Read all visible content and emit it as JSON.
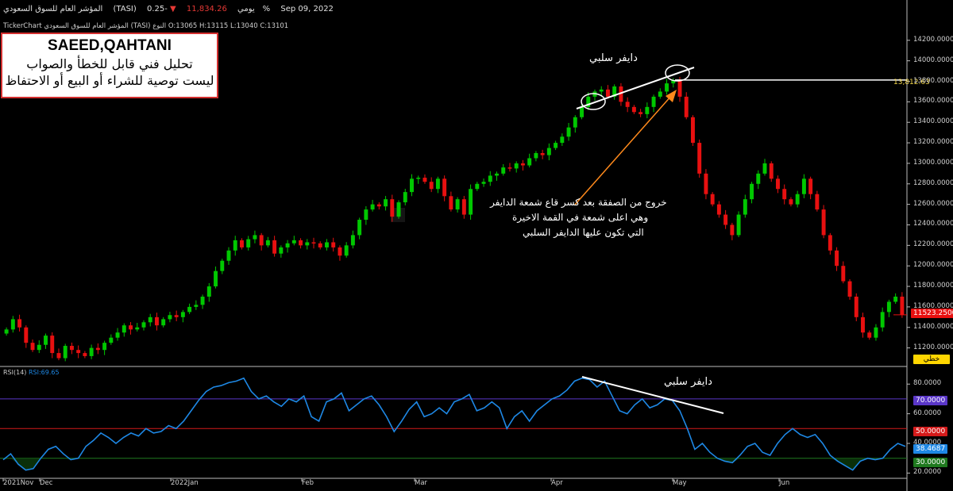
{
  "header": {
    "index_name": "المؤشر العام للسوق السعودي",
    "symbol": "(TASI)",
    "period": "يومي",
    "price": "11,834.26",
    "change_arrow": "▼",
    "change": "-0.25%",
    "date": "Sep 09, 2022"
  },
  "subheader": "TickerChart المؤشر العام للسوق السعودي (TASI) النوع O:13065 H:13115 L:13040 C:13101",
  "disclaimer": {
    "author": "SAEED,QAHTANI",
    "line1": "تحليل فني قابل للخطأ والصواب",
    "line2": "ليست توصية للشراء أو البيع أو الاحتفاظ"
  },
  "annotations": {
    "divergence_top": "دايفر سلبي",
    "divergence_rsi": "دايفر سلبي",
    "exit_note_1": "خروج من الصفقة بعد كسر قاع شمعة الدايفر",
    "exit_note_2": "وهي اعلى شمعة في القمة الاخيرة",
    "exit_note_3": "التي تكون عليها الدايفر السلبي"
  },
  "price_labels": {
    "level_line": "13,812.63",
    "last_price": "11523.2500",
    "scale_button": "خطي"
  },
  "rsi_panel": {
    "label": "RSI(14)",
    "value_label": "RSI:69.65",
    "level_70": "70.0000",
    "level_50": "50.0000",
    "level_30": "30.0000",
    "current": "38.4687"
  },
  "colors": {
    "up": "#00c800",
    "down": "#e81010",
    "rsi": "#1e88e5",
    "level70": "#5a36c8",
    "level50": "#d41a1a",
    "level30": "#1f7a1f"
  },
  "chart_data": [
    {
      "type": "candlestick",
      "title": "",
      "y_axis_ticks": [
        "14200.0000",
        "14000.0000",
        "13800.0000",
        "13600.0000",
        "13400.0000",
        "13200.0000",
        "13000.0000",
        "12800.0000",
        "12600.0000",
        "12400.0000",
        "12200.0000",
        "12000.0000",
        "11800.0000",
        "11600.0000",
        "11400.0000",
        "11200.0000"
      ],
      "ylim": [
        11050,
        14330
      ],
      "x_axis_labels": [
        "2021Nov",
        "Dec",
        "2022Jan",
        "Feb",
        "Mar",
        "Apr",
        "May",
        "Jun"
      ],
      "close_series": [
        11380,
        11480,
        11400,
        11250,
        11180,
        11230,
        11320,
        11150,
        11100,
        11220,
        11180,
        11150,
        11120,
        11200,
        11180,
        11250,
        11300,
        11350,
        11420,
        11380,
        11400,
        11450,
        11500,
        11420,
        11480,
        11520,
        11500,
        11550,
        11600,
        11620,
        11700,
        11800,
        11950,
        12050,
        12150,
        12250,
        12180,
        12260,
        12300,
        12200,
        12250,
        12120,
        12180,
        12220,
        12250,
        12200,
        12230,
        12220,
        12180,
        12230,
        12180,
        12100,
        12200,
        12300,
        12450,
        12550,
        12600,
        12580,
        12650,
        12480,
        12620,
        12720,
        12850,
        12860,
        12820,
        12750,
        12850,
        12680,
        12550,
        12650,
        12500,
        12750,
        12800,
        12820,
        12880,
        12900,
        12960,
        12950,
        13000,
        12980,
        13050,
        13100,
        13080,
        13150,
        13200,
        13260,
        13350,
        13450,
        13550,
        13650,
        13700,
        13720,
        13650,
        13750,
        13600,
        13550,
        13500,
        13480,
        13550,
        13650,
        13700,
        13780,
        13812,
        13650,
        13450,
        13200,
        12900,
        12700,
        12600,
        12500,
        12400,
        12300,
        12500,
        12650,
        12800,
        12900,
        13000,
        12850,
        12750,
        12650,
        12600,
        12700,
        12850,
        12700,
        12550,
        12300,
        12150,
        12000,
        11850,
        11700,
        11500,
        11350,
        11300,
        11400,
        11550,
        11650,
        11700,
        11523
      ],
      "level_line": 13812.63,
      "last_price": 11523.25
    },
    {
      "type": "line",
      "title": "RSI(14)",
      "y_axis_ticks": [
        "80.0000",
        "60.0000",
        "40.0000",
        "20.0000"
      ],
      "ylim": [
        17,
        86
      ],
      "levels": [
        70,
        50,
        30
      ],
      "values": [
        29,
        33,
        26,
        22,
        23,
        30,
        36,
        38,
        33,
        29,
        30,
        38,
        42,
        47,
        44,
        40,
        44,
        47,
        45,
        50,
        47,
        48,
        52,
        50,
        55,
        62,
        69,
        75,
        78,
        79,
        81,
        82,
        84,
        75,
        70,
        72,
        68,
        65,
        70,
        68,
        72,
        58,
        55,
        68,
        70,
        74,
        62,
        66,
        70,
        72,
        66,
        58,
        48,
        55,
        63,
        68,
        58,
        60,
        64,
        60,
        68,
        70,
        73,
        62,
        64,
        68,
        64,
        50,
        58,
        62,
        55,
        62,
        66,
        70,
        72,
        76,
        82,
        84,
        83,
        78,
        82,
        72,
        62,
        60,
        66,
        70,
        64,
        66,
        70,
        69,
        62,
        50,
        36,
        40,
        34,
        30,
        28,
        27,
        32,
        38,
        40,
        34,
        32,
        40,
        46,
        50,
        46,
        44,
        46,
        40,
        32,
        28,
        25,
        22,
        28,
        30,
        29,
        30,
        36,
        40,
        38
      ],
      "current": 38.4687
    }
  ]
}
